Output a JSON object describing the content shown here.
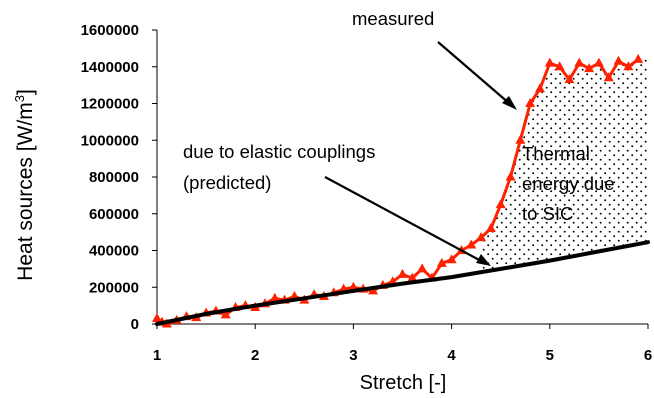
{
  "chart_data": {
    "type": "line",
    "xlabel": "Stretch [-]",
    "ylabel": "Heat sources [W/m³]",
    "ylabel_parts": {
      "main": "Heat sources [W/m",
      "sup": "3",
      "end": "]"
    },
    "xlim": [
      1,
      6
    ],
    "ylim": [
      0,
      1600000
    ],
    "x_ticks": [
      1,
      2,
      3,
      4,
      5,
      6
    ],
    "y_ticks": [
      0,
      200000,
      400000,
      600000,
      800000,
      1000000,
      1200000,
      1400000,
      1600000
    ],
    "x_tick_labels": [
      "1",
      "2",
      "3",
      "4",
      "5",
      "6"
    ],
    "y_tick_labels": [
      "0",
      "200000",
      "400000",
      "600000",
      "800000",
      "1000000",
      "1200000",
      "1400000",
      "1600000"
    ],
    "grid": false,
    "legend": "none",
    "series": [
      {
        "color": "#ff2200",
        "marker": "triangle",
        "x": [
          1.0,
          1.05,
          1.1,
          1.2,
          1.3,
          1.4,
          1.5,
          1.6,
          1.7,
          1.8,
          1.9,
          2.0,
          2.1,
          2.2,
          2.3,
          2.4,
          2.5,
          2.6,
          2.7,
          2.8,
          2.9,
          3.0,
          3.1,
          3.2,
          3.3,
          3.4,
          3.5,
          3.6,
          3.7,
          3.8,
          3.9,
          4.0,
          4.1,
          4.2,
          4.3,
          4.4,
          4.5,
          4.6,
          4.7,
          4.8,
          4.9,
          5.0,
          5.1,
          5.2,
          5.3,
          5.4,
          5.5,
          5.6,
          5.7,
          5.8,
          5.9
        ],
        "y": [
          30000,
          10000,
          0,
          20000,
          40000,
          35000,
          60000,
          70000,
          50000,
          90000,
          100000,
          90000,
          110000,
          140000,
          130000,
          150000,
          130000,
          160000,
          150000,
          170000,
          190000,
          200000,
          190000,
          180000,
          210000,
          230000,
          270000,
          250000,
          300000,
          250000,
          330000,
          350000,
          400000,
          430000,
          470000,
          520000,
          650000,
          800000,
          1000000,
          1200000,
          1280000,
          1420000,
          1400000,
          1330000,
          1420000,
          1390000,
          1420000,
          1340000,
          1430000,
          1400000,
          1440000
        ]
      },
      {
        "color": "#000000",
        "marker": "none",
        "x": [
          1.0,
          1.5,
          2.0,
          2.5,
          3.0,
          3.5,
          4.0,
          4.5,
          5.0,
          5.5,
          6.0
        ],
        "y": [
          0,
          55000,
          100000,
          140000,
          180000,
          220000,
          255000,
          300000,
          345000,
          395000,
          445000
        ]
      }
    ],
    "shaded_region": {
      "between_series": [
        0,
        1
      ],
      "x_range": [
        4.3,
        6.0
      ],
      "pattern": "dots"
    },
    "annotations": [
      {
        "lines": [
          "measured"
        ]
      },
      {
        "lines": [
          "due to elastic couplings",
          "(predicted)"
        ]
      },
      {
        "lines": [
          "Thermal",
          "energy due",
          "to SIC"
        ]
      }
    ]
  }
}
